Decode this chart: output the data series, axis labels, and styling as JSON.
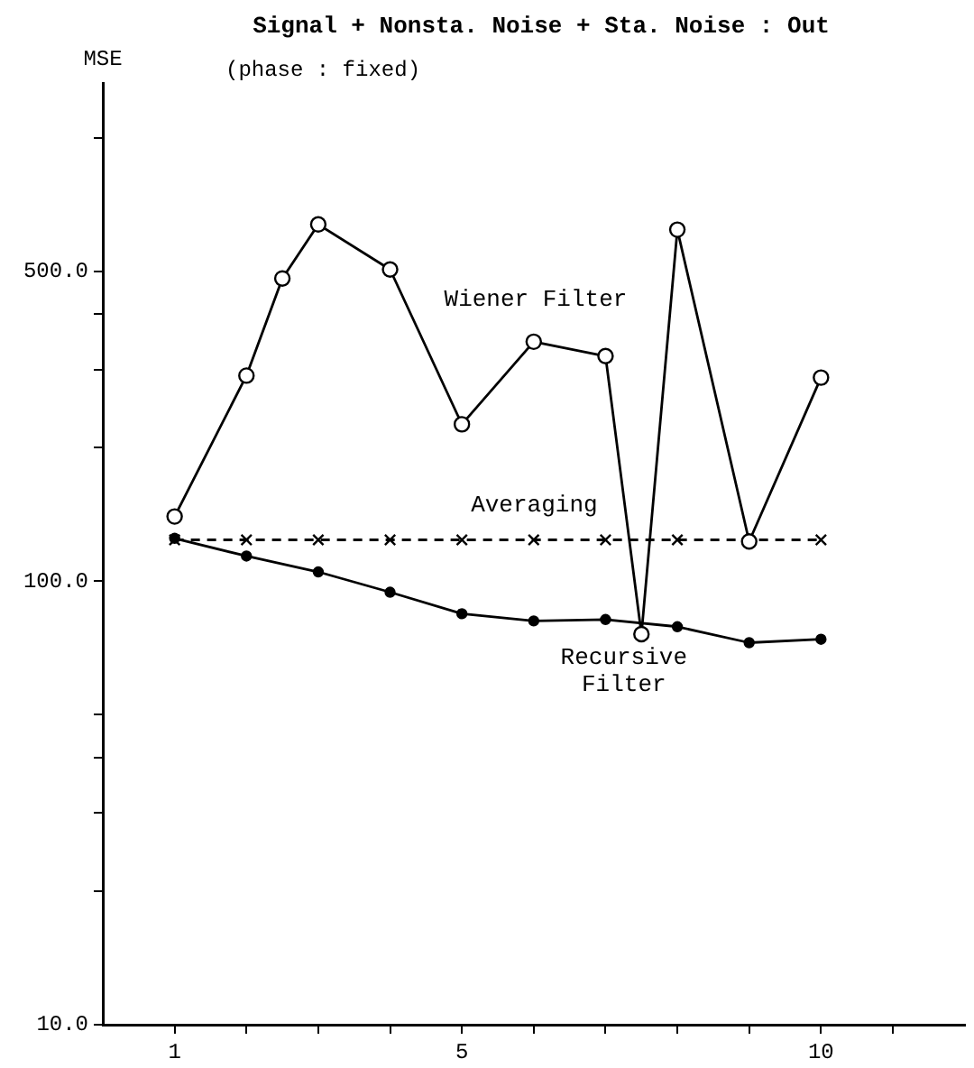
{
  "chart_data": {
    "type": "line",
    "title": "Signal + Nonsta. Noise + Sta. Noise : Out",
    "subtitle": "(phase : fixed)",
    "ylabel": "MSE",
    "log": "y",
    "grid": false,
    "legend": false,
    "xlim": [
      0,
      12
    ],
    "xticks": [
      1,
      {
        "value": 2,
        "label": null
      },
      {
        "value": 3,
        "label": null
      },
      {
        "value": 4,
        "label": null
      },
      5,
      {
        "value": 6,
        "label": null
      },
      {
        "value": 7,
        "label": null
      },
      {
        "value": 8,
        "label": null
      },
      {
        "value": 9,
        "label": null
      },
      10,
      {
        "value": 11,
        "label": null
      }
    ],
    "ylim": [
      10,
      1330
    ],
    "yticks": [
      {
        "value": 10,
        "label": "10.0"
      },
      {
        "value": 20,
        "label": null
      },
      {
        "value": 30,
        "label": null
      },
      {
        "value": 40,
        "label": null
      },
      {
        "value": 50,
        "label": null
      },
      {
        "value": 100,
        "label": "100.0"
      },
      {
        "value": 200,
        "label": null
      },
      {
        "value": 300,
        "label": null
      },
      {
        "value": 400,
        "label": null
      },
      {
        "value": 500,
        "label": "500.0"
      },
      {
        "value": 1000,
        "label": null
      }
    ],
    "series": [
      {
        "name": "Wiener Filter",
        "color": "#000000",
        "marker": "circle",
        "line_style": "solid",
        "x": [
          1,
          2,
          2.5,
          3,
          4,
          5,
          6,
          7,
          7.5,
          8,
          9,
          10
        ],
        "values": [
          140,
          291,
          482,
          638,
          505,
          226,
          347,
          322,
          76,
          621,
          123,
          288
        ]
      },
      {
        "name": "Averaging",
        "color": "#000000",
        "marker": "cross",
        "line_style": "dashed",
        "x": [
          1,
          2,
          3,
          4,
          5,
          6,
          7,
          8,
          9,
          10
        ],
        "values": [
          124,
          124,
          124,
          124,
          124,
          124,
          124,
          124,
          null,
          124
        ]
      },
      {
        "name": "Recursive Filter",
        "color": "#000000",
        "marker": "circle",
        "line_style": "solid",
        "x": [
          1,
          2,
          3,
          4,
          5,
          6,
          7,
          8,
          9,
          10
        ],
        "values": [
          125,
          114,
          105,
          94.5,
          84.5,
          81.4,
          82,
          79,
          72.7,
          74
        ]
      }
    ]
  }
}
